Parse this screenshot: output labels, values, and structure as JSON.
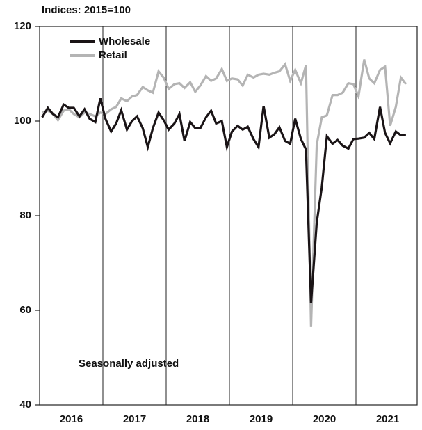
{
  "chart_data": {
    "type": "line",
    "title": "Indices: 2015=100",
    "annotation": "Seasonally adjusted",
    "x": [
      2016.04,
      2016.13,
      2016.21,
      2016.29,
      2016.38,
      2016.46,
      2016.54,
      2016.63,
      2016.71,
      2016.79,
      2016.88,
      2016.96,
      2017.04,
      2017.13,
      2017.21,
      2017.29,
      2017.38,
      2017.46,
      2017.54,
      2017.63,
      2017.71,
      2017.79,
      2017.88,
      2017.96,
      2018.04,
      2018.13,
      2018.21,
      2018.29,
      2018.38,
      2018.46,
      2018.54,
      2018.63,
      2018.71,
      2018.79,
      2018.88,
      2018.96,
      2019.04,
      2019.13,
      2019.21,
      2019.29,
      2019.38,
      2019.46,
      2019.54,
      2019.63,
      2019.71,
      2019.79,
      2019.88,
      2019.96,
      2020.04,
      2020.13,
      2020.21,
      2020.29,
      2020.38,
      2020.46,
      2020.54,
      2020.63,
      2020.71,
      2020.79,
      2020.88,
      2020.96,
      2021.04,
      2021.13,
      2021.21,
      2021.29,
      2021.38,
      2021.46,
      2021.54,
      2021.63,
      2021.71,
      2021.79
    ],
    "series": [
      {
        "name": "Retail",
        "color": "#b4b4b4",
        "values": [
          101.8,
          102.2,
          101.5,
          100.2,
          102.2,
          102.5,
          101.5,
          100.8,
          101.8,
          101.5,
          101,
          101.8,
          101.5,
          102.5,
          103,
          104.8,
          104.2,
          105.2,
          105.5,
          107.2,
          106.5,
          106,
          110.5,
          109.2,
          106.8,
          107.8,
          108,
          107,
          108.2,
          106.2,
          107.5,
          109.5,
          108.5,
          109,
          111,
          108.5,
          109,
          108.8,
          107.5,
          109.8,
          109.2,
          109.8,
          110,
          109.8,
          110.2,
          110.5,
          112,
          108.5,
          110.8,
          108,
          111.8,
          56.5,
          95,
          100.8,
          101.2,
          105.5,
          105.5,
          106,
          108,
          107.8,
          105.2,
          113,
          109,
          108,
          110.8,
          111.5,
          99,
          103,
          109.2,
          107.8
        ]
      },
      {
        "name": "Wholesale",
        "color": "#1a1416",
        "values": [
          100.8,
          102.8,
          101.5,
          100.8,
          103.5,
          102.8,
          102.8,
          101,
          102.5,
          100.5,
          99.8,
          104.8,
          100.5,
          97.8,
          99.5,
          102.3,
          98.2,
          100,
          101,
          98.5,
          94.5,
          98.5,
          101.8,
          100.2,
          98.2,
          99.5,
          101.5,
          95.8,
          99.8,
          98.5,
          98.5,
          100.8,
          102.2,
          99.5,
          100,
          94.5,
          97.8,
          99,
          98.2,
          98.8,
          96.2,
          94.5,
          103.2,
          96.5,
          97.2,
          98.7,
          95.8,
          95.2,
          100.5,
          96.2,
          94,
          61.5,
          78.5,
          86,
          96.8,
          95.2,
          96,
          94.8,
          94.2,
          96.2,
          96.3,
          96.5,
          97.5,
          96.2,
          103,
          97.5,
          95.3,
          97.8,
          97,
          97
        ]
      }
    ],
    "legend_order": [
      "Wholesale",
      "Retail"
    ],
    "xlim": [
      2016,
      2022
    ],
    "xticks": [
      {
        "value": 2016.5,
        "label": "2016"
      },
      {
        "value": 2017.5,
        "label": "2017"
      },
      {
        "value": 2018.5,
        "label": "2018"
      },
      {
        "value": 2019.5,
        "label": "2019"
      },
      {
        "value": 2020.5,
        "label": "2020"
      },
      {
        "value": 2021.5,
        "label": "2021"
      }
    ],
    "year_lines": [
      2017,
      2018,
      2019,
      2020,
      2021
    ],
    "ylim": [
      40,
      120
    ],
    "yticks": [
      40,
      60,
      80,
      100,
      120
    ]
  }
}
